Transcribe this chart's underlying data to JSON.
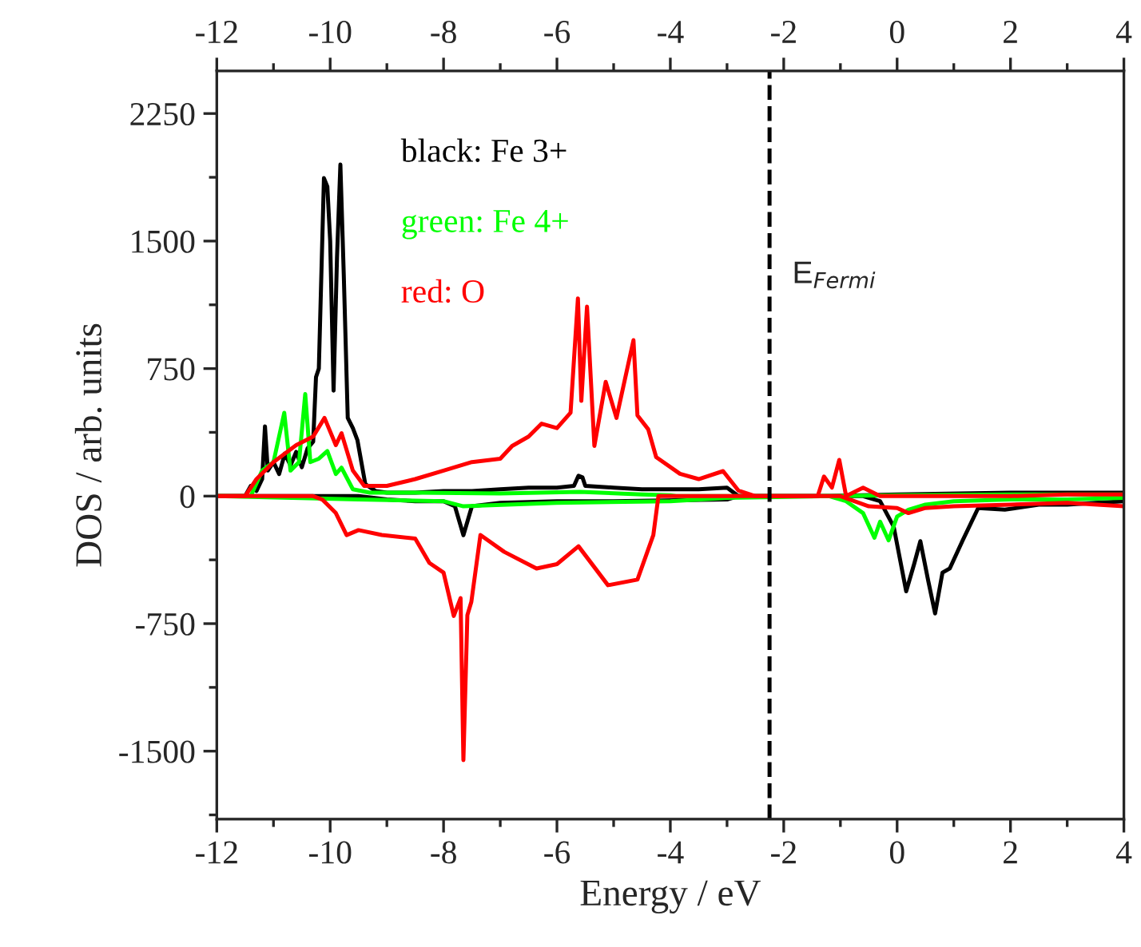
{
  "chart_data": {
    "type": "line",
    "xlabel": "Energy / eV",
    "ylabel": "DOS / arb. units",
    "xlim": [
      -12,
      4
    ],
    "xticks": [
      -12,
      -10,
      -8,
      -6,
      -4,
      -2,
      0,
      2,
      4
    ],
    "x2lim": [
      -12,
      4
    ],
    "x2ticks": [
      -12,
      -10,
      -8,
      -6,
      -4,
      -2,
      0,
      2,
      4
    ],
    "ylim": [
      -1900,
      2500
    ],
    "yticks": [
      -1500,
      -750,
      0,
      750,
      1500,
      2250
    ],
    "grid": false,
    "legend": "top left",
    "marker": "none",
    "line_style": "solid",
    "ref_lines": [
      {
        "axis": "x",
        "value": -2.25,
        "label": "E$_{Fermi}$",
        "color": "#000000",
        "line_style": "dashed"
      }
    ],
    "series": [
      {
        "name": "black: Fe 3+",
        "color": "#000000",
        "x": [
          -12,
          -11.5,
          -11.4,
          -11.3,
          -11.2,
          -11.15,
          -11.1,
          -11.0,
          -10.9,
          -10.8,
          -10.7,
          -10.6,
          -10.5,
          -10.4,
          -10.3,
          -10.25,
          -10.2,
          -10.11,
          -10.05,
          -10.0,
          -9.94,
          -9.88,
          -9.82,
          -9.76,
          -9.69,
          -9.6,
          -9.52,
          -9.45,
          -9.38,
          -9.2,
          -9.0,
          -8.5,
          -8.0,
          -7.5,
          -7.0,
          -6.5,
          -6.0,
          -5.7,
          -5.62,
          -5.55,
          -5.5,
          -5.0,
          -4.5,
          -4.0,
          -3.5,
          -3.0,
          -2.8,
          -1.2,
          0,
          2,
          4
        ],
        "values": [
          0,
          0,
          60,
          30,
          100,
          410,
          150,
          200,
          130,
          250,
          180,
          260,
          170,
          280,
          320,
          700,
          750,
          1870,
          1820,
          1500,
          620,
          1400,
          1950,
          1300,
          460,
          400,
          330,
          200,
          70,
          30,
          20,
          20,
          30,
          30,
          40,
          50,
          50,
          60,
          120,
          110,
          60,
          50,
          40,
          40,
          40,
          50,
          0,
          0,
          10,
          20,
          20
        ]
      },
      {
        "color": "#000000",
        "x": [
          -12,
          -9.5,
          -9.0,
          -8.5,
          -8.0,
          -7.8,
          -7.65,
          -7.5,
          -7.0,
          -6.0,
          -5.0,
          -4.0,
          -3.0,
          -2.8,
          -0.6,
          -0.3,
          -0.06,
          0.16,
          0.3,
          0.41,
          0.55,
          0.67,
          0.8,
          0.93,
          1.15,
          1.43,
          1.9,
          2.5,
          3.0,
          3.5,
          4.0
        ],
        "values": [
          0,
          0,
          -20,
          -30,
          -30,
          -60,
          -230,
          -60,
          -40,
          -30,
          -30,
          null,
          -20,
          0,
          0,
          -30,
          -180,
          -560,
          -400,
          -265,
          -500,
          -690,
          -450,
          -425,
          -265,
          -70,
          -80,
          -50,
          -50,
          -40,
          -30
        ]
      },
      {
        "name": "green: Fe 4+",
        "color": "#00ff00",
        "x": [
          -12,
          -11.4,
          -11.2,
          -11.0,
          -10.81,
          -10.7,
          -10.55,
          -10.44,
          -10.35,
          -10.2,
          -10.05,
          -9.9,
          -9.8,
          -9.6,
          -9.3,
          -8.5,
          -7.0,
          -5.6,
          -4.5,
          -4.0,
          -3.9,
          -1.2,
          0,
          2,
          4
        ],
        "values": [
          0,
          0,
          150,
          200,
          490,
          150,
          200,
          600,
          200,
          220,
          265,
          130,
          167,
          40,
          20,
          20,
          15,
          25,
          10,
          5,
          0,
          0,
          5,
          10,
          10
        ]
      },
      {
        "color": "#00ff00",
        "x": [
          -12,
          -9.5,
          -8.0,
          -7.65,
          -6.0,
          -4.0,
          -3.0,
          -1.2,
          -0.9,
          -0.6,
          -0.4,
          -0.3,
          -0.15,
          0,
          0.2,
          0.5,
          1.0,
          2.0,
          3.0,
          4.0
        ],
        "values": [
          0,
          -20,
          -30,
          -60,
          -40,
          -30,
          -10,
          0,
          -30,
          -100,
          -245,
          -150,
          -260,
          -120,
          -80,
          -50,
          -30,
          -20,
          -20,
          -10
        ]
      },
      {
        "name": "red: O",
        "color": "#ff0000",
        "x": [
          -12,
          -11.5,
          -11.3,
          -11.0,
          -10.6,
          -10.3,
          -10.1,
          -9.9,
          -9.8,
          -9.6,
          -9.4,
          -9.0,
          -8.5,
          -8.0,
          -7.5,
          -7.0,
          -6.79,
          -6.5,
          -6.27,
          -6.0,
          -5.76,
          -5.63,
          -5.57,
          -5.47,
          -5.34,
          -5.14,
          -4.95,
          -4.65,
          -4.58,
          -4.39,
          -4.25,
          -3.83,
          -3.5,
          -3.07,
          -2.8,
          -2.5,
          -1.4,
          -1.29,
          -1.15,
          -1.02,
          -0.9,
          -0.6,
          -0.3,
          0,
          1,
          2,
          3,
          4
        ],
        "values": [
          0,
          0,
          100,
          200,
          300,
          350,
          460,
          300,
          370,
          150,
          60,
          60,
          100,
          150,
          200,
          220,
          295,
          350,
          426,
          400,
          490,
          1163,
          560,
          1114,
          295,
          672,
          460,
          917,
          475,
          393,
          229,
          131,
          100,
          147,
          33,
          0,
          0,
          115,
          50,
          213,
          0,
          50,
          0,
          0,
          0,
          0,
          10,
          10
        ]
      },
      {
        "color": "#ff0000",
        "x": [
          -12,
          -10.3,
          -10.14,
          -9.9,
          -9.71,
          -9.5,
          -9.09,
          -8.5,
          -8.25,
          -8.0,
          -7.82,
          -7.7,
          -7.65,
          -7.58,
          -7.51,
          -7.35,
          -6.93,
          -6.36,
          -6.0,
          -5.62,
          -5.1,
          -4.58,
          -4.3,
          -4.21,
          -1.0,
          -0.5,
          0,
          0.2,
          0.5,
          1.0,
          2.0,
          3.0,
          4.0
        ],
        "values": [
          0,
          0,
          -20,
          -100,
          -229,
          -200,
          -229,
          -250,
          -393,
          -450,
          -705,
          -600,
          -1553,
          -700,
          -622,
          -229,
          -328,
          -426,
          -400,
          -295,
          -524,
          -491,
          -229,
          0,
          0,
          -60,
          -70,
          -100,
          -70,
          -60,
          -50,
          -40,
          -60
        ]
      }
    ]
  }
}
